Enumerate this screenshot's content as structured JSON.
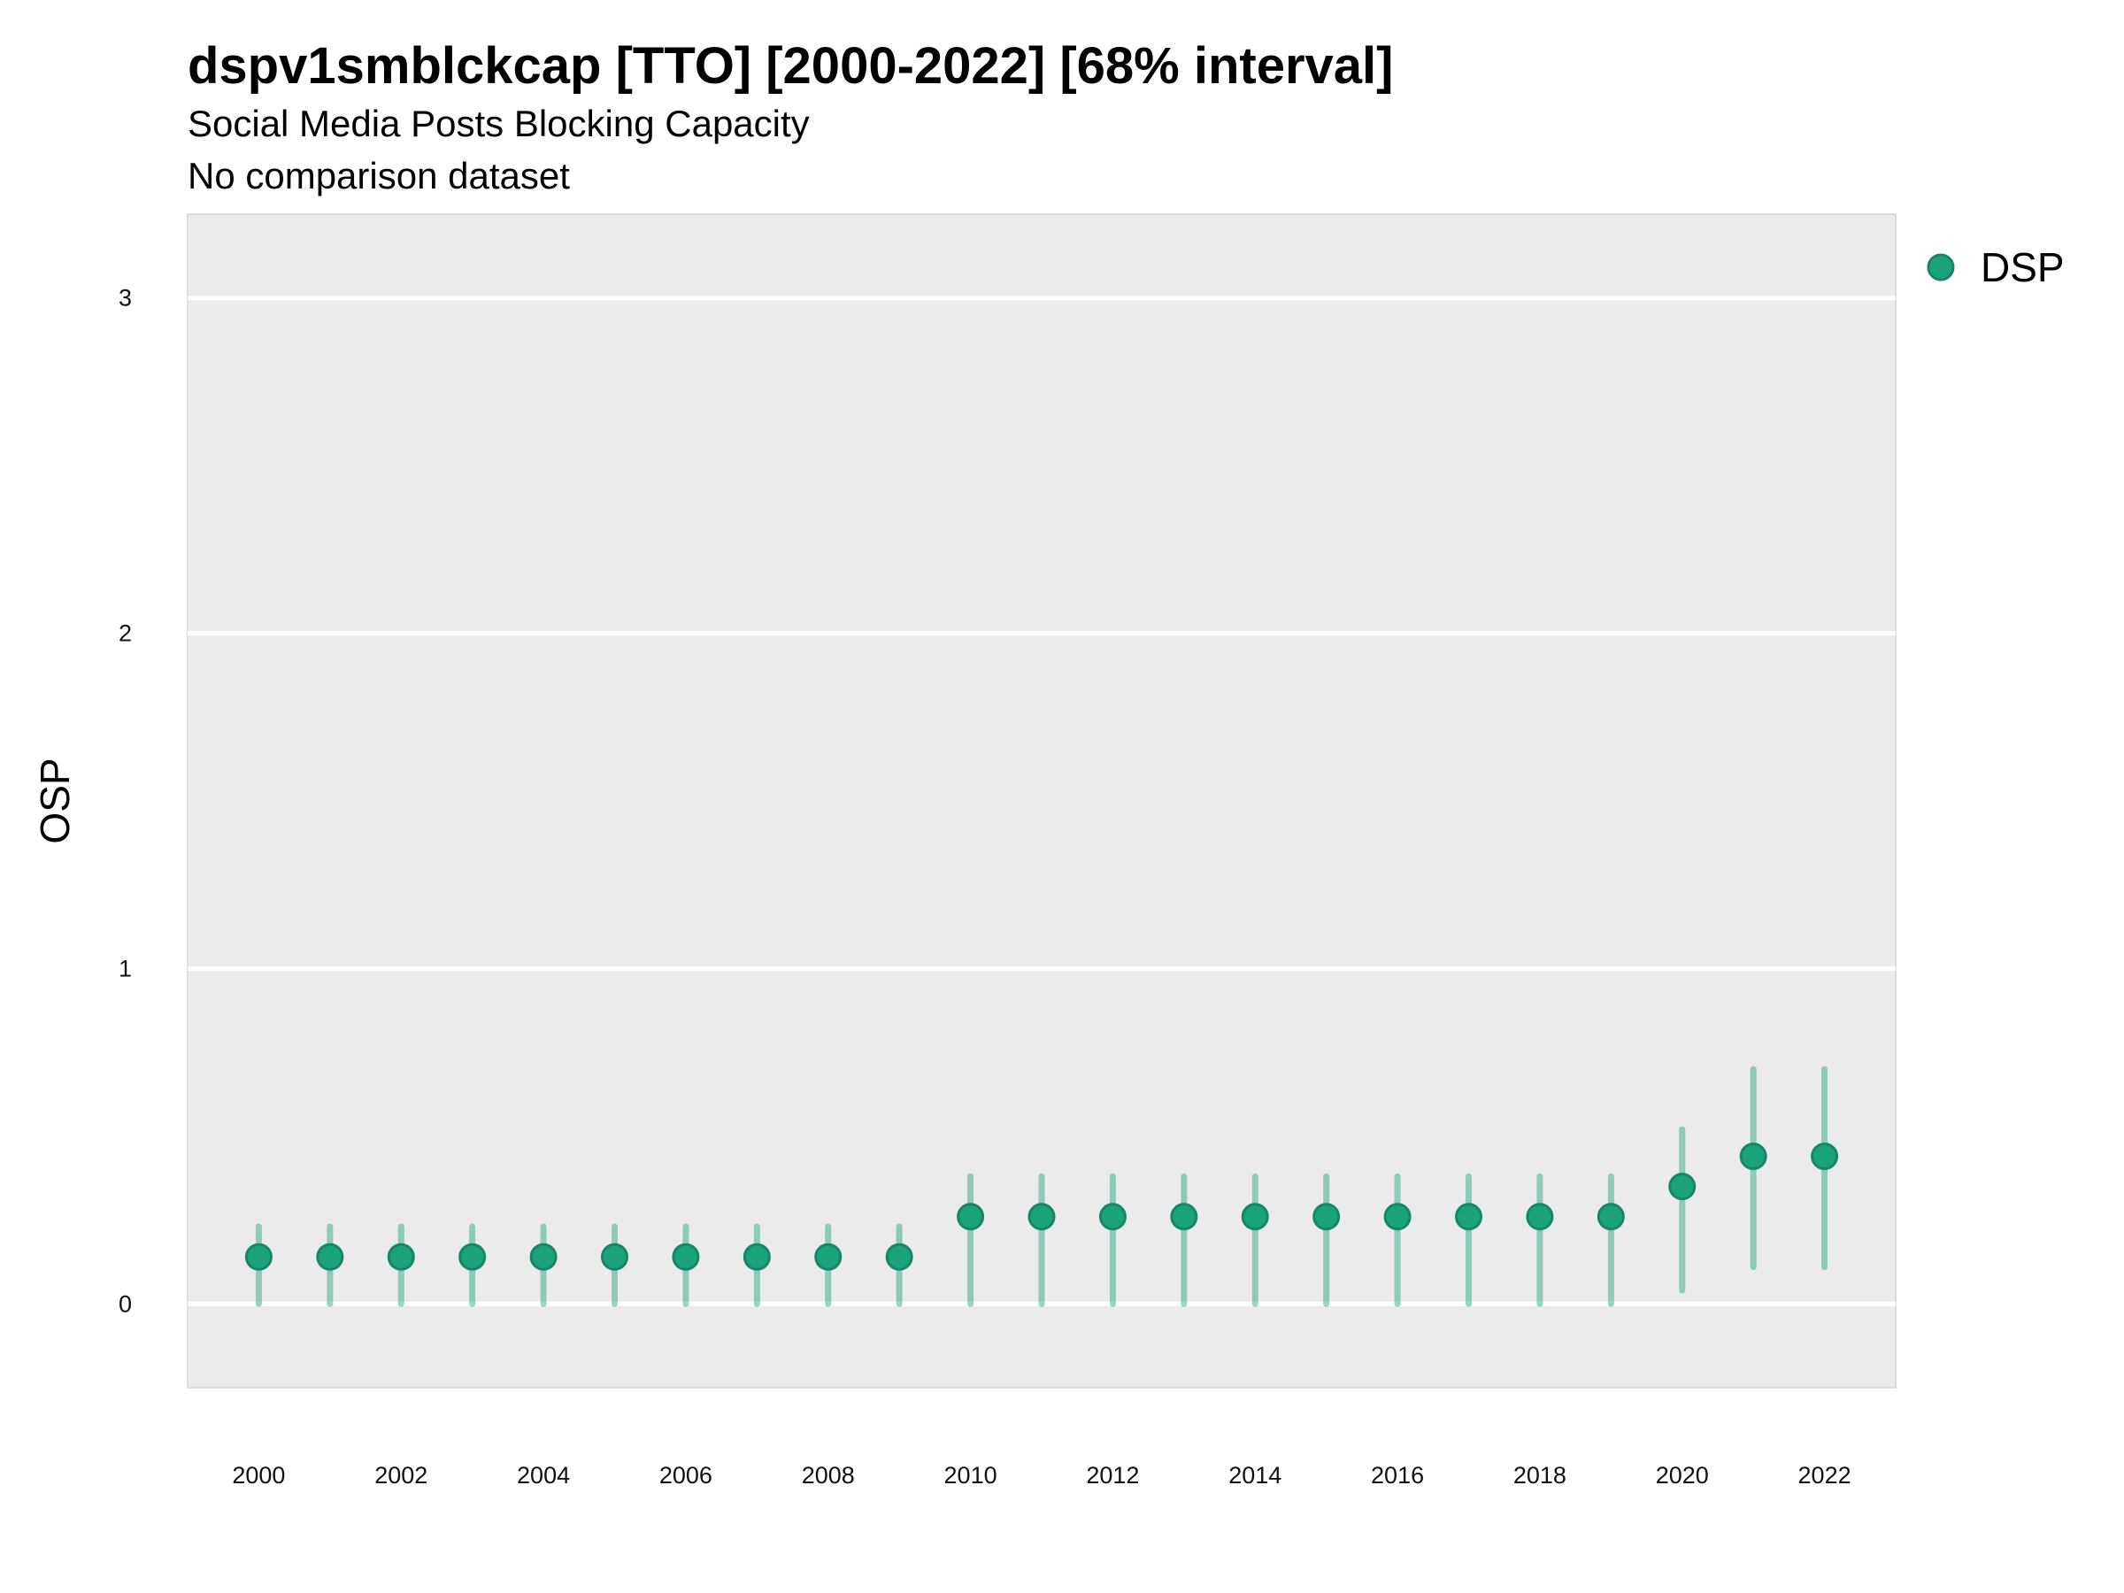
{
  "chart_data": {
    "type": "scatter",
    "title": "dspv1smblckcap [TTO] [2000-2022] [68% interval]",
    "subtitle": "Social Media Posts Blocking Capacity",
    "caption": "No comparison dataset",
    "xlabel": "",
    "ylabel": "OSP",
    "xlim": [
      1999,
      2023
    ],
    "ylim": [
      -0.25,
      3.25
    ],
    "x_ticks": [
      2000,
      2002,
      2004,
      2006,
      2008,
      2010,
      2012,
      2014,
      2016,
      2018,
      2020,
      2022
    ],
    "y_ticks": [
      0,
      1,
      2,
      3
    ],
    "grid": true,
    "legend": {
      "position": "right",
      "entries": [
        "DSP"
      ]
    },
    "series": [
      {
        "name": "DSP",
        "color": "#1aa37a",
        "x": [
          2000,
          2001,
          2002,
          2003,
          2004,
          2005,
          2006,
          2007,
          2008,
          2009,
          2010,
          2011,
          2012,
          2013,
          2014,
          2015,
          2016,
          2017,
          2018,
          2019,
          2020,
          2021,
          2022
        ],
        "y": [
          0.14,
          0.14,
          0.14,
          0.14,
          0.14,
          0.14,
          0.14,
          0.14,
          0.14,
          0.14,
          0.26,
          0.26,
          0.26,
          0.26,
          0.26,
          0.26,
          0.26,
          0.26,
          0.26,
          0.26,
          0.35,
          0.44,
          0.44
        ],
        "lower": [
          0.0,
          0.0,
          0.0,
          0.0,
          0.0,
          0.0,
          0.0,
          0.0,
          0.0,
          0.0,
          0.0,
          0.0,
          0.0,
          0.0,
          0.0,
          0.0,
          0.0,
          0.0,
          0.0,
          0.0,
          0.04,
          0.11,
          0.11
        ],
        "upper": [
          0.23,
          0.23,
          0.23,
          0.23,
          0.23,
          0.23,
          0.23,
          0.23,
          0.23,
          0.23,
          0.38,
          0.38,
          0.38,
          0.38,
          0.38,
          0.38,
          0.38,
          0.38,
          0.38,
          0.38,
          0.52,
          0.7,
          0.7
        ]
      }
    ]
  }
}
